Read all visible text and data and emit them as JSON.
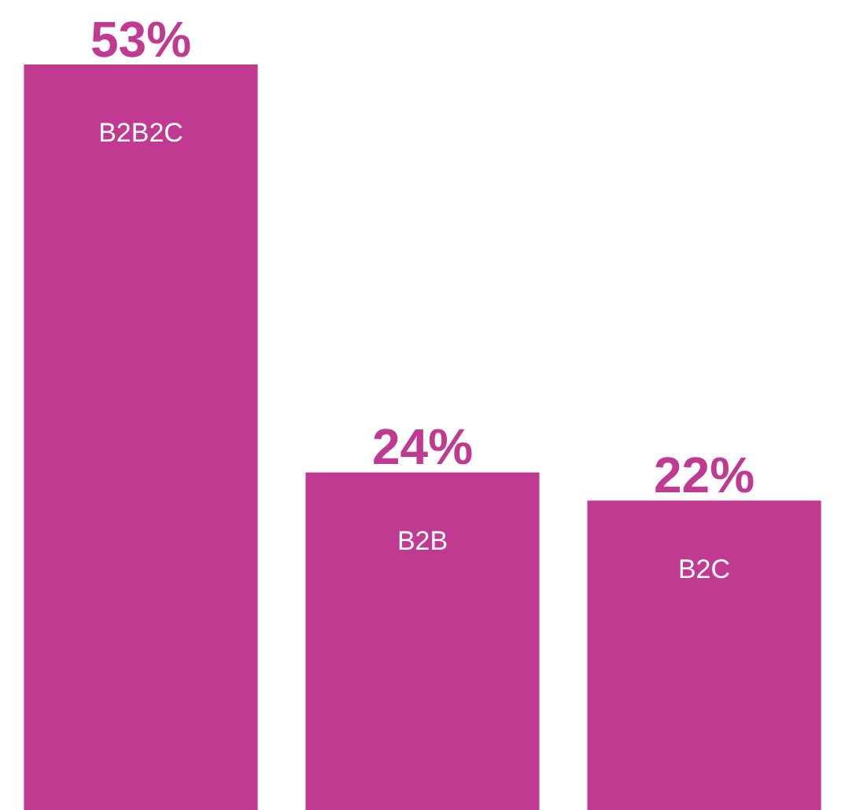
{
  "chart_data": {
    "type": "bar",
    "categories": [
      "B2B2C",
      "B2B",
      "B2C"
    ],
    "values": [
      53,
      24,
      22
    ],
    "value_labels": [
      "53%",
      "24%",
      "22%"
    ],
    "color": "#c03a92",
    "ylim": [
      0,
      53
    ]
  }
}
